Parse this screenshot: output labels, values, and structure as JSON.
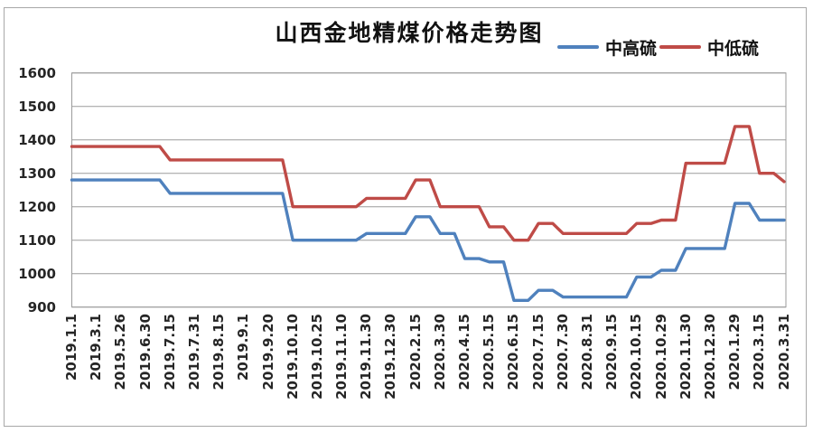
{
  "title": "山西金地精煤价格走势图",
  "legend": {
    "items": [
      {
        "label": "中高硫",
        "color": "#4f81bd"
      },
      {
        "label": "中低硫",
        "color": "#bf4b47"
      }
    ]
  },
  "chart_data": {
    "type": "line",
    "title": "山西金地精煤价格走势图",
    "interpolation": "step",
    "grid": true,
    "legend_position": "top-right",
    "xlabel": "",
    "ylabel": "",
    "ylim": [
      900,
      1600
    ],
    "y_ticks": [
      1600,
      1500,
      1400,
      1300,
      1200,
      1100,
      1000,
      900
    ],
    "categories": [
      "2019.1.1",
      "2019.3.1",
      "2019.5.26",
      "2019.6.30",
      "2019.7.15",
      "2019.7.31",
      "2019.8.15",
      "2019.9.1",
      "2019.9.20",
      "2019.10.10",
      "2019.10.25",
      "2019.11.10",
      "2019.11.30",
      "2019.12.30",
      "2020.2.15",
      "2020.3.30",
      "2020.4.15",
      "2020.5.15",
      "2020.6.15",
      "2020.7.15",
      "2020.7.30",
      "2020.8.31",
      "2020.9.15",
      "2020.10.15",
      "2020.10.29",
      "2020.11.30",
      "2020.12.30",
      "2020.1.29",
      "2020.3.15",
      "2020.3.31"
    ],
    "series": [
      {
        "name": "中高硫",
        "color": "#4f81bd",
        "values": [
          1280,
          1280,
          1280,
          1280,
          1240,
          1240,
          1240,
          1240,
          1240,
          1100,
          1100,
          1100,
          1120,
          1120,
          1170,
          1120,
          1045,
          1035,
          920,
          950,
          930,
          930,
          930,
          990,
          1010,
          1075,
          1075,
          1210,
          1160,
          1160
        ]
      },
      {
        "name": "中低硫",
        "color": "#bf4b47",
        "values": [
          1380,
          1380,
          1380,
          1380,
          1340,
          1340,
          1340,
          1340,
          1340,
          1200,
          1200,
          1200,
          1225,
          1225,
          1280,
          1200,
          1200,
          1140,
          1100,
          1150,
          1120,
          1120,
          1120,
          1150,
          1160,
          1330,
          1330,
          1440,
          1300,
          1275
        ]
      }
    ]
  },
  "colors": {
    "background": "#ffffff",
    "chart_border": "#a8a8a8",
    "gridline": "#9b9b9b",
    "tick_text": "#262626",
    "title_text": "#111111"
  }
}
